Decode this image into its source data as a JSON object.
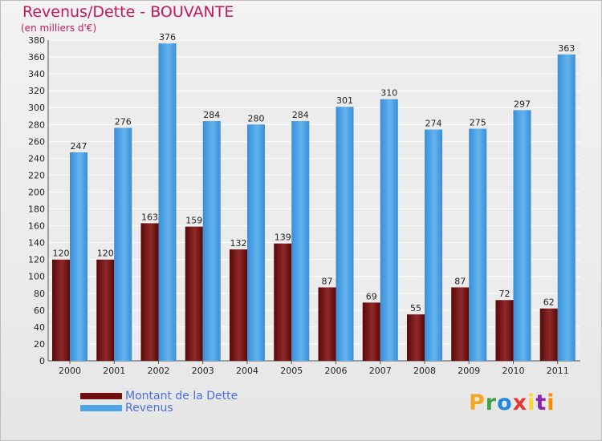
{
  "chart_data": {
    "type": "bar",
    "title": "Revenus/Dette - BOUVANTE",
    "subtitle": "(en milliers d'€)",
    "categories": [
      "2000",
      "2001",
      "2002",
      "2003",
      "2004",
      "2005",
      "2006",
      "2007",
      "2008",
      "2009",
      "2010",
      "2011"
    ],
    "series": [
      {
        "name": "Montant de la Dette",
        "color": "#7a1a1a",
        "values": [
          120,
          120,
          163,
          159,
          132,
          139,
          87,
          69,
          55,
          87,
          72,
          62
        ]
      },
      {
        "name": "Revenus",
        "color": "#4ea3e6",
        "values": [
          247,
          276,
          376,
          284,
          280,
          284,
          301,
          310,
          274,
          275,
          297,
          363
        ]
      }
    ],
    "ylim": [
      0,
      380
    ],
    "yticks": [
      0,
      20,
      40,
      60,
      80,
      100,
      120,
      140,
      160,
      180,
      200,
      220,
      240,
      260,
      280,
      300,
      320,
      340,
      360,
      380
    ],
    "grid": true,
    "legend_position": "bottom-left"
  },
  "brand": {
    "letters": [
      "P",
      "r",
      "o",
      "x",
      "i",
      "t",
      "i"
    ],
    "colors": [
      "#f5a623",
      "#43a047",
      "#1e88e5",
      "#e53935",
      "#fdd835",
      "#8e24aa",
      "#fb8c00"
    ]
  }
}
